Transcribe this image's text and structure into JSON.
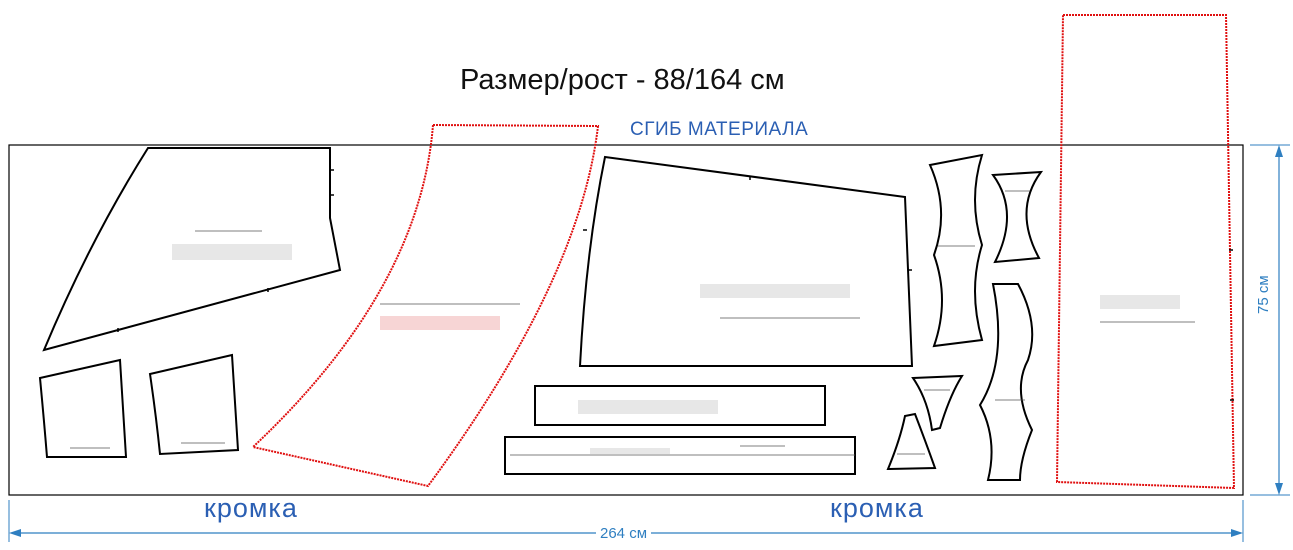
{
  "title": "Размер/рост - 88/164 см",
  "fold_label": "СГИБ МАТЕРИАЛА",
  "selvage_label": "кромка",
  "width_label": "264 см",
  "height_label": "75 см",
  "colors": {
    "dimension_blue": "#2f7fc1",
    "label_blue": "#2b5fb3",
    "pattern_outline": "#000000",
    "highlight_pattern": "#e01010"
  }
}
